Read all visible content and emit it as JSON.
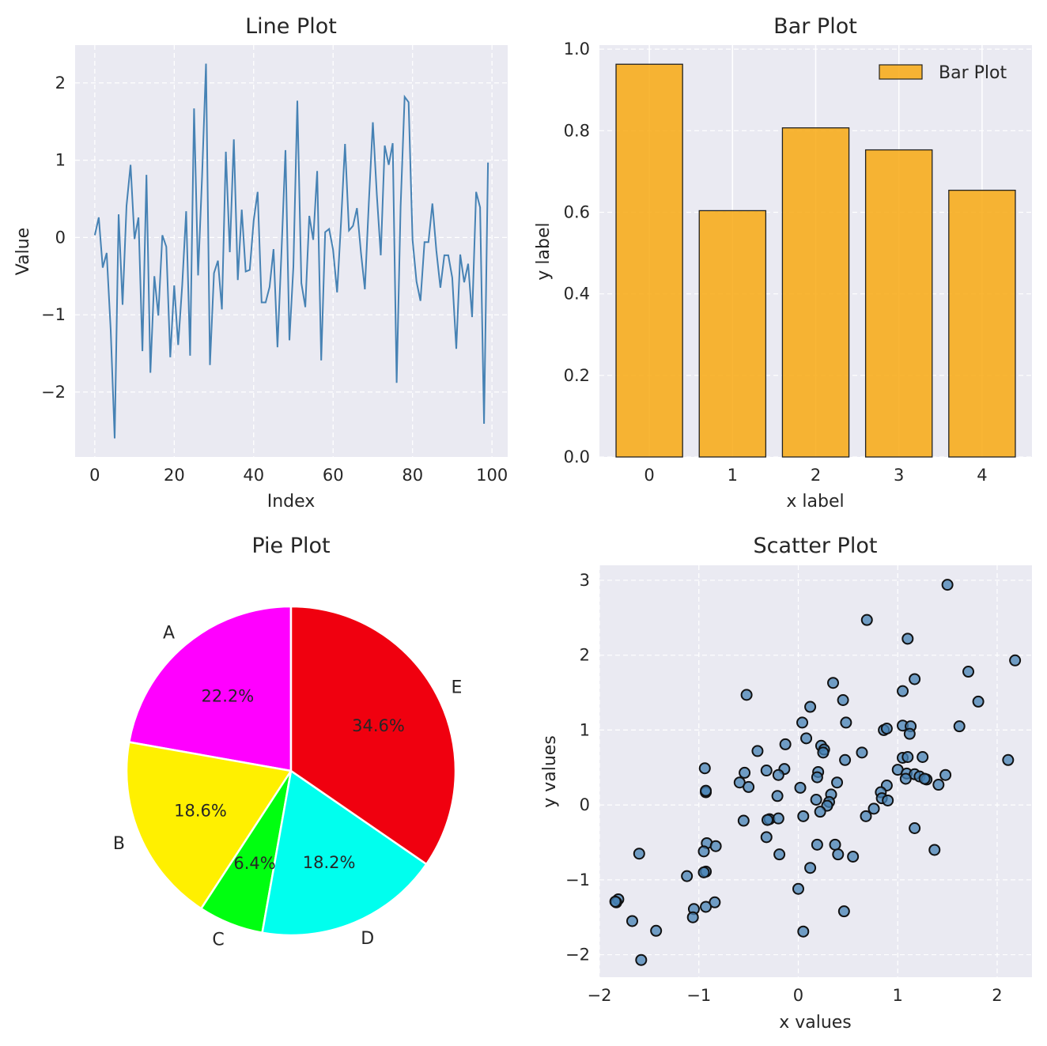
{
  "chart_data": [
    {
      "type": "line",
      "title": "Line Plot",
      "xlabel": "Index",
      "ylabel": "Value",
      "xlim": [
        -4.95,
        103.95
      ],
      "ylim": [
        -2.84,
        2.49
      ],
      "xticks": [
        0,
        20,
        40,
        60,
        80,
        100
      ],
      "yticks": [
        -2,
        -1,
        0,
        1,
        2
      ],
      "grid": true,
      "color": "#4682b4",
      "x": [
        0,
        1,
        2,
        3,
        4,
        5,
        6,
        7,
        8,
        9,
        10,
        11,
        12,
        13,
        14,
        15,
        16,
        17,
        18,
        19,
        20,
        21,
        22,
        23,
        24,
        25,
        26,
        27,
        28,
        29,
        30,
        31,
        32,
        33,
        34,
        35,
        36,
        37,
        38,
        39,
        40,
        41,
        42,
        43,
        44,
        45,
        46,
        47,
        48,
        49,
        50,
        51,
        52,
        53,
        54,
        55,
        56,
        57,
        58,
        59,
        60,
        61,
        62,
        63,
        64,
        65,
        66,
        67,
        68,
        69,
        70,
        71,
        72,
        73,
        74,
        75,
        76,
        77,
        78,
        79,
        80,
        81,
        82,
        83,
        84,
        85,
        86,
        87,
        88,
        89,
        90,
        91,
        92,
        93,
        94,
        95,
        96,
        97,
        98,
        99
      ],
      "values": [
        0.03,
        0.26,
        -0.39,
        -0.2,
        -1.2,
        -2.6,
        0.3,
        -0.87,
        0.41,
        0.94,
        -0.02,
        0.26,
        -1.47,
        0.81,
        -1.75,
        -0.5,
        -1.01,
        0.03,
        -0.12,
        -1.55,
        -0.62,
        -1.39,
        -0.62,
        0.34,
        -1.53,
        1.67,
        -0.49,
        0.78,
        2.25,
        -1.65,
        -0.46,
        -0.3,
        -0.93,
        1.11,
        -0.19,
        1.27,
        -0.55,
        0.36,
        -0.44,
        -0.42,
        0.22,
        0.59,
        -0.84,
        -0.84,
        -0.64,
        -0.15,
        -1.42,
        -0.2,
        1.13,
        -1.33,
        -0.38,
        1.77,
        -0.59,
        -0.9,
        0.28,
        -0.03,
        0.86,
        -1.59,
        0.07,
        0.11,
        -0.16,
        -0.71,
        0.2,
        1.21,
        0.09,
        0.15,
        0.38,
        -0.19,
        -0.67,
        0.45,
        1.49,
        0.56,
        -0.23,
        1.19,
        0.94,
        1.22,
        -1.88,
        0.4,
        1.82,
        1.75,
        -0.03,
        -0.57,
        -0.82,
        -0.06,
        -0.06,
        0.44,
        -0.17,
        -0.65,
        -0.23,
        -0.23,
        -0.52,
        -1.44,
        -0.22,
        -0.58,
        -0.34,
        -1.03,
        0.59,
        0.39,
        -2.41,
        0.97
      ]
    },
    {
      "type": "bar",
      "title": "Bar Plot",
      "xlabel": "x label",
      "ylabel": "y label",
      "categories": [
        "0",
        "1",
        "2",
        "3",
        "4"
      ],
      "values": [
        0.963,
        0.604,
        0.807,
        0.753,
        0.654
      ],
      "ylim": [
        0,
        1.01
      ],
      "yticks": [
        "0.0",
        "0.2",
        "0.4",
        "0.6",
        "0.8",
        "1.0"
      ],
      "legend": {
        "label": "Bar Plot",
        "position": "top-right"
      },
      "color": "#f8a912",
      "grid": true
    },
    {
      "type": "pie",
      "title": "Pie Plot",
      "labels": [
        "A",
        "B",
        "C",
        "D",
        "E"
      ],
      "percent_labels": [
        "22.2%",
        "18.6%",
        "6.4%",
        "18.2%",
        "34.6%"
      ],
      "values": [
        22.2,
        18.6,
        6.4,
        18.2,
        34.6
      ],
      "colors": [
        "#ff00ff",
        "#fff000",
        "#00ff10",
        "#00ffee",
        "#f0000f"
      ],
      "start_angle": 90
    },
    {
      "type": "scatter",
      "title": "Scatter Plot",
      "xlabel": "x values",
      "ylabel": "y values",
      "xlim": [
        -2.0,
        2.35
      ],
      "ylim": [
        -2.3,
        3.2
      ],
      "xticks": [
        -2,
        -1,
        0,
        1,
        2
      ],
      "yticks": [
        -2,
        -1,
        0,
        1,
        2,
        3
      ],
      "grid": true,
      "color": "#4682b4",
      "points": [
        [
          1.5,
          2.94
        ],
        [
          0.69,
          2.47
        ],
        [
          1.1,
          2.22
        ],
        [
          2.18,
          1.93
        ],
        [
          1.71,
          1.78
        ],
        [
          1.17,
          1.68
        ],
        [
          0.35,
          1.63
        ],
        [
          1.05,
          1.52
        ],
        [
          -0.52,
          1.47
        ],
        [
          1.81,
          1.38
        ],
        [
          0.45,
          1.4
        ],
        [
          0.12,
          1.31
        ],
        [
          0.04,
          1.1
        ],
        [
          0.48,
          1.1
        ],
        [
          1.05,
          1.06
        ],
        [
          1.13,
          1.05
        ],
        [
          1.62,
          1.05
        ],
        [
          0.86,
          1.0
        ],
        [
          0.89,
          1.02
        ],
        [
          1.12,
          0.95
        ],
        [
          0.08,
          0.89
        ],
        [
          -0.13,
          0.81
        ],
        [
          0.23,
          0.79
        ],
        [
          0.26,
          0.74
        ],
        [
          -0.41,
          0.72
        ],
        [
          0.64,
          0.7
        ],
        [
          0.25,
          0.7
        ],
        [
          0.47,
          0.6
        ],
        [
          1.05,
          0.63
        ],
        [
          1.1,
          0.64
        ],
        [
          1.25,
          0.64
        ],
        [
          2.11,
          0.6
        ],
        [
          -0.94,
          0.49
        ],
        [
          -0.14,
          0.48
        ],
        [
          -0.32,
          0.46
        ],
        [
          -0.54,
          0.43
        ],
        [
          0.2,
          0.44
        ],
        [
          1.0,
          0.47
        ],
        [
          1.09,
          0.42
        ],
        [
          1.17,
          0.41
        ],
        [
          1.48,
          0.4
        ],
        [
          -0.2,
          0.4
        ],
        [
          0.19,
          0.37
        ],
        [
          1.22,
          0.38
        ],
        [
          1.08,
          0.35
        ],
        [
          1.29,
          0.34
        ],
        [
          1.27,
          0.35
        ],
        [
          -0.59,
          0.3
        ],
        [
          0.39,
          0.3
        ],
        [
          1.41,
          0.27
        ],
        [
          -0.5,
          0.24
        ],
        [
          0.02,
          0.23
        ],
        [
          0.89,
          0.26
        ],
        [
          -0.93,
          0.17
        ],
        [
          -0.93,
          0.19
        ],
        [
          0.33,
          0.14
        ],
        [
          -0.21,
          0.12
        ],
        [
          0.83,
          0.17
        ],
        [
          0.18,
          0.07
        ],
        [
          0.31,
          0.04
        ],
        [
          0.84,
          0.09
        ],
        [
          0.9,
          0.06
        ],
        [
          0.29,
          -0.01
        ],
        [
          0.22,
          -0.09
        ],
        [
          0.76,
          -0.05
        ],
        [
          0.68,
          -0.15
        ],
        [
          0.05,
          -0.15
        ],
        [
          -0.29,
          -0.19
        ],
        [
          -0.2,
          -0.18
        ],
        [
          -0.31,
          -0.2
        ],
        [
          -0.55,
          -0.21
        ],
        [
          1.17,
          -0.31
        ],
        [
          -0.32,
          -0.43
        ],
        [
          -0.92,
          -0.51
        ],
        [
          0.19,
          -0.53
        ],
        [
          0.37,
          -0.53
        ],
        [
          -0.83,
          -0.55
        ],
        [
          -0.95,
          -0.62
        ],
        [
          1.37,
          -0.6
        ],
        [
          -0.19,
          -0.66
        ],
        [
          0.4,
          -0.66
        ],
        [
          0.55,
          -0.69
        ],
        [
          -1.6,
          -0.65
        ],
        [
          0.12,
          -0.84
        ],
        [
          -0.93,
          -0.89
        ],
        [
          -0.95,
          -0.9
        ],
        [
          -1.12,
          -0.95
        ],
        [
          0.0,
          -1.12
        ],
        [
          -0.84,
          -1.3
        ],
        [
          -0.93,
          -1.36
        ],
        [
          -1.05,
          -1.39
        ],
        [
          -1.81,
          -1.26
        ],
        [
          -1.83,
          -1.3
        ],
        [
          -1.84,
          -1.29
        ],
        [
          0.46,
          -1.42
        ],
        [
          -1.06,
          -1.5
        ],
        [
          -1.67,
          -1.55
        ],
        [
          -1.43,
          -1.68
        ],
        [
          0.05,
          -1.69
        ],
        [
          -1.58,
          -2.07
        ]
      ]
    }
  ]
}
